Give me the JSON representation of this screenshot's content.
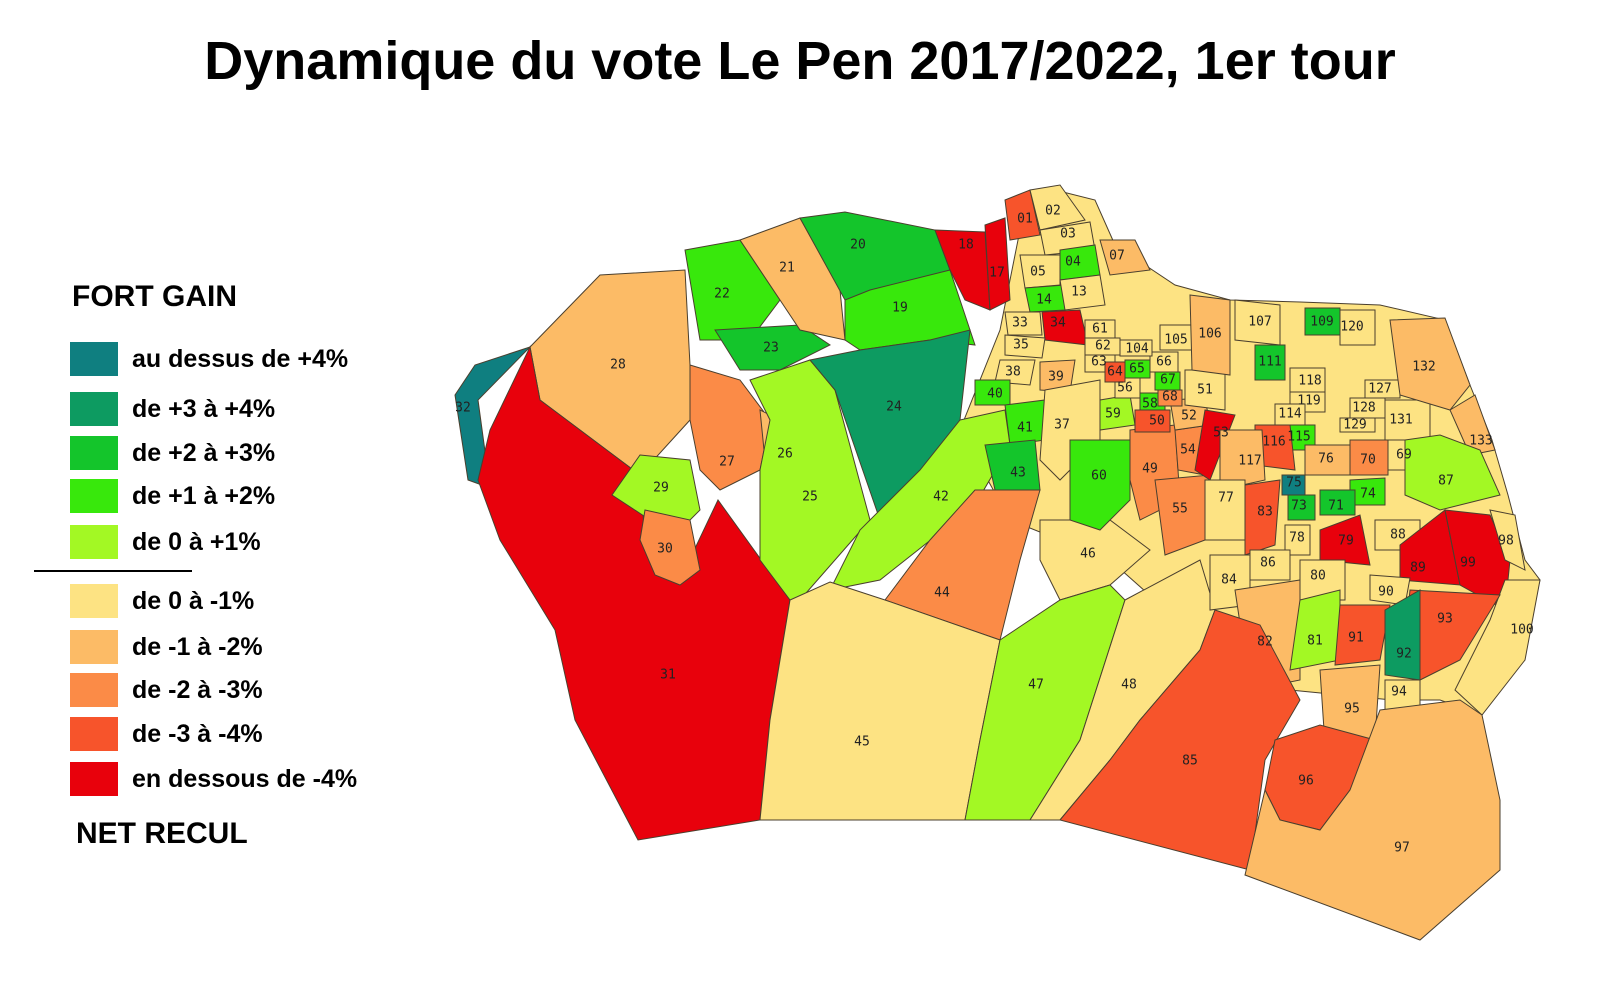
{
  "title": "Dynamique du vote Le Pen 2017/2022, 1er tour",
  "legend": {
    "top_heading": "FORT GAIN",
    "bottom_heading": "NET RECUL",
    "categories": [
      {
        "key": "g5",
        "label": "au dessus de +4%",
        "color": "#0f7f80"
      },
      {
        "key": "g4",
        "label": "de +3 à +4%",
        "color": "#0d9b61"
      },
      {
        "key": "g3",
        "label": "de +2 à +3%",
        "color": "#14c52b"
      },
      {
        "key": "g2",
        "label": "de +1 à +2%",
        "color": "#38e80c"
      },
      {
        "key": "g1",
        "label": "de 0 à +1%",
        "color": "#a3f824"
      },
      {
        "key": "l1",
        "label": "de 0 à -1%",
        "color": "#fde383"
      },
      {
        "key": "l2",
        "label": "de -1 à -2%",
        "color": "#fcbb66"
      },
      {
        "key": "l3",
        "label": "de -2 à -3%",
        "color": "#fb8b47"
      },
      {
        "key": "l4",
        "label": "de -3 à -4%",
        "color": "#f7542b"
      },
      {
        "key": "l5",
        "label": "en dessous de -4%",
        "color": "#e8010c"
      }
    ]
  },
  "map": {
    "outline_color": "#4a3f2e",
    "zones": [
      {
        "id": "01",
        "cat": "l4"
      },
      {
        "id": "02",
        "cat": "l1"
      },
      {
        "id": "03",
        "cat": "l1"
      },
      {
        "id": "04",
        "cat": "g2"
      },
      {
        "id": "05",
        "cat": "l1"
      },
      {
        "id": "07",
        "cat": "l2"
      },
      {
        "id": "13",
        "cat": "l1"
      },
      {
        "id": "14",
        "cat": "g2"
      },
      {
        "id": "17",
        "cat": "l5"
      },
      {
        "id": "18",
        "cat": "l5"
      },
      {
        "id": "19",
        "cat": "g2"
      },
      {
        "id": "20",
        "cat": "g3"
      },
      {
        "id": "21",
        "cat": "l2"
      },
      {
        "id": "22",
        "cat": "g2"
      },
      {
        "id": "23",
        "cat": "g3"
      },
      {
        "id": "24",
        "cat": "g4"
      },
      {
        "id": "25",
        "cat": "g1"
      },
      {
        "id": "26",
        "cat": "l2"
      },
      {
        "id": "27",
        "cat": "l3"
      },
      {
        "id": "28",
        "cat": "l2"
      },
      {
        "id": "29",
        "cat": "g1"
      },
      {
        "id": "30",
        "cat": "l3"
      },
      {
        "id": "31",
        "cat": "l5"
      },
      {
        "id": "32",
        "cat": "g5"
      },
      {
        "id": "33",
        "cat": "l1"
      },
      {
        "id": "34",
        "cat": "l5"
      },
      {
        "id": "35",
        "cat": "l1"
      },
      {
        "id": "37",
        "cat": "l1"
      },
      {
        "id": "38",
        "cat": "l1"
      },
      {
        "id": "39",
        "cat": "l2"
      },
      {
        "id": "40",
        "cat": "g2"
      },
      {
        "id": "41",
        "cat": "g2"
      },
      {
        "id": "42",
        "cat": "g1"
      },
      {
        "id": "43",
        "cat": "g3"
      },
      {
        "id": "44",
        "cat": "l3"
      },
      {
        "id": "45",
        "cat": "l1"
      },
      {
        "id": "46",
        "cat": "l1"
      },
      {
        "id": "47",
        "cat": "g1"
      },
      {
        "id": "48",
        "cat": "l1"
      },
      {
        "id": "49",
        "cat": "l3"
      },
      {
        "id": "50",
        "cat": "l4"
      },
      {
        "id": "51",
        "cat": "l1"
      },
      {
        "id": "52",
        "cat": "l2"
      },
      {
        "id": "53",
        "cat": "l5"
      },
      {
        "id": "54",
        "cat": "l3"
      },
      {
        "id": "55",
        "cat": "l3"
      },
      {
        "id": "56",
        "cat": "l1"
      },
      {
        "id": "58",
        "cat": "g2"
      },
      {
        "id": "59",
        "cat": "g1"
      },
      {
        "id": "60",
        "cat": "g2"
      },
      {
        "id": "61",
        "cat": "l1"
      },
      {
        "id": "62",
        "cat": "l1"
      },
      {
        "id": "63",
        "cat": "l1"
      },
      {
        "id": "64",
        "cat": "l4"
      },
      {
        "id": "65",
        "cat": "g2"
      },
      {
        "id": "66",
        "cat": "l1"
      },
      {
        "id": "67",
        "cat": "g2"
      },
      {
        "id": "68",
        "cat": "l3"
      },
      {
        "id": "69",
        "cat": "l1"
      },
      {
        "id": "70",
        "cat": "l3"
      },
      {
        "id": "71",
        "cat": "g3"
      },
      {
        "id": "73",
        "cat": "g3"
      },
      {
        "id": "74",
        "cat": "g2"
      },
      {
        "id": "75",
        "cat": "g5"
      },
      {
        "id": "76",
        "cat": "l2"
      },
      {
        "id": "77",
        "cat": "l1"
      },
      {
        "id": "78",
        "cat": "l1"
      },
      {
        "id": "79",
        "cat": "l5"
      },
      {
        "id": "80",
        "cat": "l1"
      },
      {
        "id": "81",
        "cat": "g1"
      },
      {
        "id": "82",
        "cat": "l2"
      },
      {
        "id": "83",
        "cat": "l4"
      },
      {
        "id": "84",
        "cat": "l1"
      },
      {
        "id": "85",
        "cat": "l4"
      },
      {
        "id": "86",
        "cat": "l1"
      },
      {
        "id": "87",
        "cat": "g1"
      },
      {
        "id": "88",
        "cat": "l1"
      },
      {
        "id": "89",
        "cat": "l5"
      },
      {
        "id": "90",
        "cat": "l1"
      },
      {
        "id": "91",
        "cat": "l4"
      },
      {
        "id": "92",
        "cat": "g4"
      },
      {
        "id": "93",
        "cat": "l4"
      },
      {
        "id": "94",
        "cat": "l1"
      },
      {
        "id": "95",
        "cat": "l2"
      },
      {
        "id": "96",
        "cat": "l4"
      },
      {
        "id": "97",
        "cat": "l2"
      },
      {
        "id": "98",
        "cat": "l1"
      },
      {
        "id": "99",
        "cat": "l5"
      },
      {
        "id": "100",
        "cat": "l1"
      },
      {
        "id": "104",
        "cat": "l1"
      },
      {
        "id": "105",
        "cat": "l1"
      },
      {
        "id": "106",
        "cat": "l2"
      },
      {
        "id": "107",
        "cat": "l1"
      },
      {
        "id": "109",
        "cat": "g3"
      },
      {
        "id": "111",
        "cat": "g3"
      },
      {
        "id": "114",
        "cat": "l1"
      },
      {
        "id": "115",
        "cat": "g2"
      },
      {
        "id": "116",
        "cat": "l4"
      },
      {
        "id": "117",
        "cat": "l2"
      },
      {
        "id": "118",
        "cat": "l1"
      },
      {
        "id": "119",
        "cat": "l1"
      },
      {
        "id": "120",
        "cat": "l1"
      },
      {
        "id": "127",
        "cat": "l1"
      },
      {
        "id": "128",
        "cat": "l1"
      },
      {
        "id": "129",
        "cat": "l1"
      },
      {
        "id": "131",
        "cat": "l1"
      },
      {
        "id": "132",
        "cat": "l2"
      },
      {
        "id": "133",
        "cat": "l2"
      }
    ]
  }
}
